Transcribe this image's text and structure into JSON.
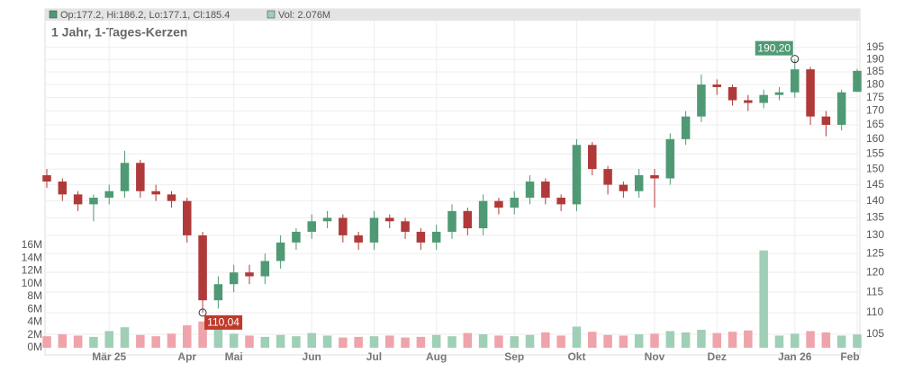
{
  "chart_data": {
    "type": "candlestick",
    "title": "1 Jahr, 1-Tages-Kerzen",
    "legend": {
      "ohlc": "Op:177.2, Hi:186.2, Lo:177.1, Cl:185.4",
      "volume": "Vol: 2.076M"
    },
    "categories": [
      null,
      null,
      null,
      null,
      "Mär 25",
      null,
      null,
      null,
      null,
      "Apr",
      null,
      null,
      "Mai",
      null,
      null,
      null,
      null,
      "Jun",
      null,
      null,
      null,
      "Jul",
      null,
      null,
      null,
      "Aug",
      null,
      null,
      null,
      null,
      "Sep",
      null,
      null,
      null,
      "Okt",
      null,
      null,
      null,
      null,
      "Nov",
      null,
      null,
      null,
      "Dez",
      null,
      null,
      null,
      null,
      "Jan 26",
      null,
      null,
      null,
      "Feb"
    ],
    "open": [
      148,
      146,
      142,
      139,
      141,
      143,
      152,
      143,
      142,
      140,
      130,
      113,
      117,
      120,
      119,
      123,
      128,
      131,
      134,
      135,
      130,
      128,
      135,
      134,
      131,
      128,
      131,
      137,
      132,
      140,
      138,
      141,
      146,
      141,
      139,
      158,
      150,
      145,
      143,
      148,
      147,
      160,
      168,
      180,
      179,
      174,
      173,
      176,
      177,
      186,
      168,
      165,
      177.2
    ],
    "high": [
      150,
      147,
      143,
      142,
      145,
      156,
      153,
      145,
      143,
      141,
      131,
      119,
      122,
      122,
      125,
      130,
      132,
      136,
      137,
      136,
      131,
      137,
      136,
      135,
      132,
      133,
      139,
      138,
      142,
      141,
      143,
      148,
      147,
      142,
      160,
      159,
      151,
      146,
      150,
      150,
      162,
      170,
      184,
      182,
      180,
      176,
      178,
      179,
      190.2,
      187,
      170,
      178,
      186.2
    ],
    "low": [
      144,
      140,
      137,
      134,
      139,
      141,
      141,
      140,
      138,
      128,
      110.04,
      111,
      115,
      117,
      117,
      121,
      126,
      129,
      132,
      128,
      126,
      126,
      132,
      129,
      126,
      126,
      129,
      130,
      130,
      136,
      136,
      139,
      139,
      137,
      137,
      148,
      142,
      141,
      141,
      138,
      145,
      158,
      166,
      176,
      172,
      170,
      171,
      174,
      175,
      165,
      161,
      163,
      177.1
    ],
    "close": [
      146,
      142,
      139,
      141,
      143,
      152,
      143,
      142,
      140,
      130,
      113,
      117,
      120,
      119,
      123,
      128,
      131,
      134,
      135,
      130,
      128,
      135,
      134,
      131,
      128,
      131,
      137,
      132,
      140,
      138,
      141,
      146,
      141,
      139,
      158,
      150,
      145,
      143,
      148,
      147,
      160,
      168,
      180,
      179,
      174,
      173,
      176,
      177,
      186,
      168,
      165,
      177,
      185.4
    ],
    "volume": [
      1800000,
      2100000,
      1900000,
      1700000,
      2600000,
      3200000,
      2000000,
      1800000,
      2200000,
      3500000,
      4100000,
      2900000,
      2200000,
      1900000,
      1700000,
      2000000,
      1800000,
      2300000,
      1900000,
      1600000,
      1700000,
      1800000,
      1900000,
      1600000,
      1700000,
      2000000,
      1800000,
      2300000,
      2100000,
      1900000,
      1800000,
      2000000,
      2400000,
      1900000,
      3300000,
      2500000,
      2000000,
      1900000,
      2100000,
      2200000,
      2600000,
      2400000,
      2800000,
      2300000,
      2500000,
      2700000,
      15200000,
      1900000,
      2200000,
      2600000,
      2400000,
      1900000,
      2076000
    ],
    "up_color": "#4f9a74",
    "down_color": "#b03a3a",
    "volume_up_color": "#9fcfb6",
    "volume_down_color": "#eea4aa",
    "ylim": [
      102,
      207
    ],
    "log_scale": true,
    "yticks": [
      105,
      110,
      115,
      120,
      125,
      130,
      135,
      140,
      145,
      150,
      155,
      160,
      165,
      170,
      175,
      180,
      185,
      190,
      195
    ],
    "volume_ylim": [
      0,
      16000000
    ],
    "volume_ticks": [
      {
        "value": 0,
        "label": "0M"
      },
      {
        "value": 2000000,
        "label": "2M"
      },
      {
        "value": 4000000,
        "label": "4M"
      },
      {
        "value": 6000000,
        "label": "6M"
      },
      {
        "value": 8000000,
        "label": "8M"
      },
      {
        "value": 10000000,
        "label": "10M"
      },
      {
        "value": 12000000,
        "label": "12M"
      },
      {
        "value": 14000000,
        "label": "14M"
      },
      {
        "value": 16000000,
        "label": "16M"
      }
    ],
    "annotations": [
      {
        "label": "190,20",
        "value": 190.2,
        "color": "#4f9a74"
      },
      {
        "label": "110,04",
        "value": 110.04,
        "color": "#c0392b"
      }
    ],
    "grid": true
  }
}
